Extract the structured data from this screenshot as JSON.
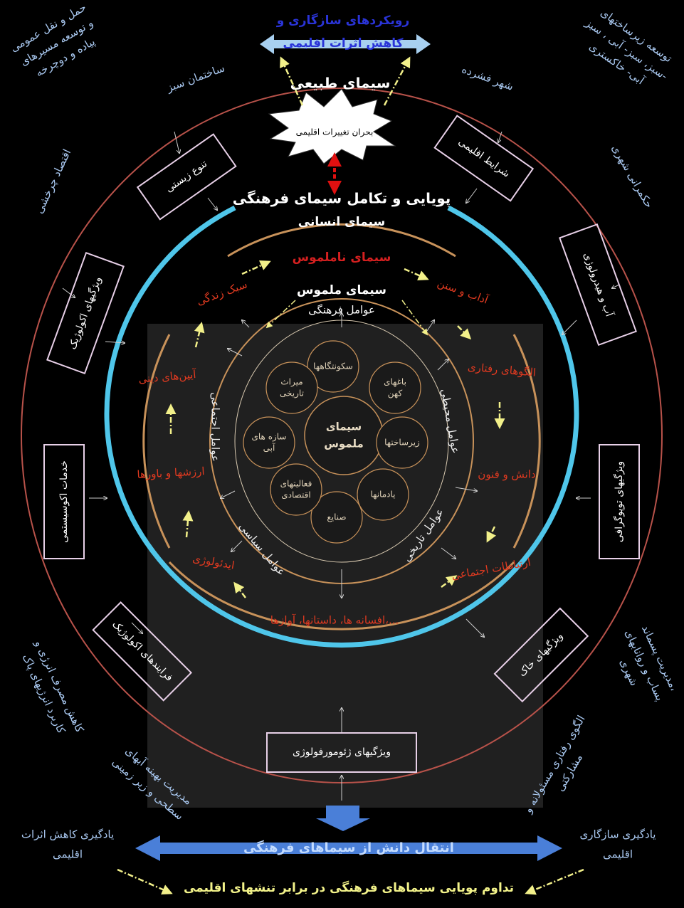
{
  "top": {
    "title": [
      "رویکردهای سازگاری و",
      "کاهش اثرات اقلیمی"
    ],
    "natural": "سیمای طبیعی",
    "crisis": "بحران تغییرات اقلیمی",
    "dynamics": "پویایی و تکامل سیمای فرهنگی",
    "human": "سیمای انسانی"
  },
  "strategies": [
    [
      "حمل و نقل عمومی",
      "و توسعه مسیرهای",
      "پیاده و دوچرخه"
    ],
    [
      "ساختمان سبز"
    ],
    [
      "شهر فشرده"
    ],
    [
      "توسعه زیرساختهای",
      "سبز، سبز- آبی ، سبز-",
      "آبی- خاکستری"
    ],
    [
      "اقتصاد چرخشی"
    ],
    [
      "حکمرانی شهری"
    ],
    [
      "کاهش مصرف انرژی و",
      "کاربرد انرژیهای پاک"
    ],
    [
      "مدیریت پسماند،",
      "پساب و روانابهای",
      "شهری"
    ],
    [
      "مدیریت بهینه آبهای",
      "سطحی و زیر زمینی"
    ],
    [
      "الگوی رفتاری مسئولانه و",
      "مشارکتی"
    ]
  ],
  "landscape_boxes": [
    "تنوع زیستی",
    "شرایط اقلیمی",
    "ویژگیهای اکولوژیک",
    "آب و هیدرولوژی",
    "خدمات اکوسیستمی",
    "ویژگیهای توپوگرافی",
    "فرایندهای اکولوژیک",
    "ویژگیهای خاک",
    "ویژگیهای ژئومورفولوژی"
  ],
  "intangible": {
    "title": "سیمای ناملموس",
    "items": [
      "سبک زندگی",
      "آداب و سنن",
      "آیین‌های دینی",
      "الگوهای رفتاری",
      "ارزشها و باورها",
      "دانش و فنون",
      "ایدئولوژی",
      "ارتباطات اجتماعی",
      "افسانه ها، داستانها، آوازها،..."
    ]
  },
  "factors": {
    "title": "سیمای ملموس",
    "subtitle": "عوامل فرهنگی",
    "items": [
      "عوامل اجتماعی",
      "عوامل محیطی",
      "عوامل تاریخی",
      "عوامل سیاسی"
    ]
  },
  "tangible": {
    "center": [
      "سیمای",
      "ملموس"
    ],
    "items": [
      [
        "سکونتگاهها"
      ],
      [
        "باغهای",
        "کهن"
      ],
      [
        "زیرساختها"
      ],
      [
        "یادمانها"
      ],
      [
        "صنایع"
      ],
      [
        "فعالیتهای",
        "اقتصادی"
      ],
      [
        "سازه های",
        "آبی"
      ],
      [
        "میراث",
        "تاریخی"
      ]
    ]
  },
  "bottom": {
    "transfer": "انتقال دانش از سیماهای فرهنگی",
    "left": [
      "یادگیری کاهش اثرات",
      "اقلیمی"
    ],
    "right": [
      "یادگیری سازگاری",
      "اقلیمی"
    ],
    "continuity": "تداوم پویایی سیماهای فرهنگی در برابر تنشهای اقلیمی"
  }
}
